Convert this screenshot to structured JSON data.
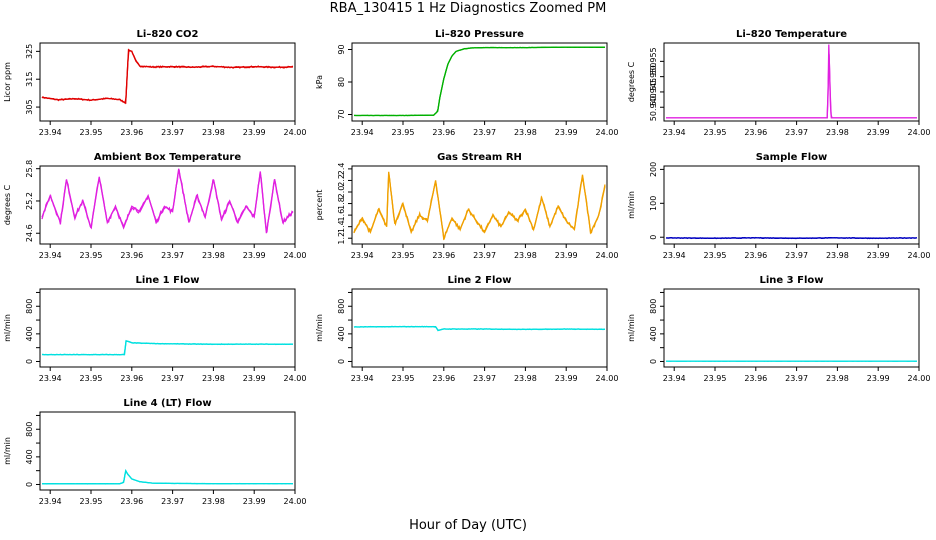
{
  "figure": {
    "title": "RBA_130415  1 Hz Diagnostics Zoomed PM",
    "xlabel": "Hour of Day (UTC)"
  },
  "chart_data": [
    {
      "type": "line",
      "title": "Li–820 CO2",
      "ylabel": "Licor ppm",
      "xlim": [
        23.9375,
        24.0
      ],
      "ylim": [
        300,
        328
      ],
      "xticks": [
        23.94,
        23.95,
        23.96,
        23.97,
        23.98,
        23.99,
        24.0
      ],
      "xtick_labels": [
        "23.94",
        "23.95",
        "23.96",
        "23.97",
        "23.98",
        "23.99",
        "24.00"
      ],
      "yticks": [
        305,
        315,
        325
      ],
      "ytick_labels": [
        "305",
        "315",
        "325"
      ],
      "color": "#e00000",
      "x": [
        23.938,
        23.942,
        23.946,
        23.95,
        23.954,
        23.957,
        23.9585,
        23.9592,
        23.96,
        23.961,
        23.962,
        23.963,
        23.965,
        23.97,
        23.975,
        23.98,
        23.985,
        23.99,
        23.995,
        23.9995
      ],
      "y": [
        308.5,
        307.6,
        308.0,
        307.5,
        308.1,
        307.7,
        306.5,
        325.5,
        325.0,
        321.5,
        319.7,
        319.6,
        319.4,
        319.5,
        319.3,
        319.6,
        319.2,
        319.5,
        319.3,
        319.4
      ]
    },
    {
      "type": "line",
      "title": "Li–820 Pressure",
      "ylabel": "kPa",
      "xlim": [
        23.9375,
        24.0
      ],
      "ylim": [
        68,
        92
      ],
      "xticks": [
        23.94,
        23.95,
        23.96,
        23.97,
        23.98,
        23.99,
        24.0
      ],
      "xtick_labels": [
        "23.94",
        "23.95",
        "23.96",
        "23.97",
        "23.98",
        "23.99",
        "24.00"
      ],
      "yticks": [
        70,
        80,
        90
      ],
      "ytick_labels": [
        "70",
        "80",
        "90"
      ],
      "color": "#00b000",
      "x": [
        23.938,
        23.95,
        23.9575,
        23.9585,
        23.959,
        23.96,
        23.961,
        23.962,
        23.963,
        23.965,
        23.967,
        23.97,
        23.98,
        23.99,
        23.9995
      ],
      "y": [
        69.7,
        69.7,
        69.8,
        71.0,
        75.0,
        81.0,
        85.5,
        88.0,
        89.4,
        90.2,
        90.5,
        90.6,
        90.6,
        90.7,
        90.7
      ]
    },
    {
      "type": "line",
      "title": "Li–820 Temperature",
      "ylabel": "degrees C",
      "xlim": [
        23.9375,
        24.0
      ],
      "ylim": [
        50.9355,
        50.961
      ],
      "xticks": [
        23.94,
        23.95,
        23.96,
        23.97,
        23.98,
        23.99,
        24.0
      ],
      "xtick_labels": [
        "23.94",
        "23.95",
        "23.96",
        "23.97",
        "23.98",
        "23.99",
        "24.00"
      ],
      "yticks": [
        50.94,
        50.945,
        50.95,
        50.955
      ],
      "ytick_labels": [
        "50.940",
        "50.945",
        "50.950",
        "50.955"
      ],
      "color": "#e020e0",
      "x": [
        23.938,
        23.9775,
        23.9777,
        23.9779,
        23.9781,
        23.9783,
        23.9785,
        23.9995
      ],
      "y": [
        50.9365,
        50.9365,
        50.944,
        50.9605,
        50.952,
        50.9405,
        50.9365,
        50.9365
      ]
    },
    {
      "type": "line",
      "title": "Ambient Box Temperature",
      "ylabel": "degrees C",
      "xlim": [
        23.9375,
        24.0
      ],
      "ylim": [
        24.4,
        25.85
      ],
      "xticks": [
        23.94,
        23.95,
        23.96,
        23.97,
        23.98,
        23.99,
        24.0
      ],
      "xtick_labels": [
        "23.94",
        "23.95",
        "23.96",
        "23.97",
        "23.98",
        "23.99",
        "24.00"
      ],
      "yticks": [
        24.6,
        25.2,
        25.8
      ],
      "ytick_labels": [
        "24.6",
        "25.2",
        "25.8"
      ],
      "color": "#e020e0",
      "x": [
        23.938,
        23.94,
        23.9425,
        23.944,
        23.946,
        23.948,
        23.95,
        23.952,
        23.954,
        23.956,
        23.958,
        23.96,
        23.962,
        23.964,
        23.966,
        23.968,
        23.97,
        23.9715,
        23.974,
        23.976,
        23.978,
        23.98,
        23.982,
        23.984,
        23.986,
        23.988,
        23.99,
        23.9915,
        23.993,
        23.995,
        23.997,
        23.9995
      ],
      "y": [
        24.9,
        25.3,
        24.8,
        25.6,
        24.9,
        25.2,
        24.7,
        25.65,
        24.8,
        25.1,
        24.7,
        25.1,
        25.0,
        25.3,
        24.8,
        25.1,
        25.0,
        25.8,
        24.8,
        25.3,
        24.9,
        25.6,
        24.85,
        25.2,
        24.8,
        25.1,
        24.9,
        25.75,
        24.6,
        25.6,
        24.8,
        25.0
      ]
    },
    {
      "type": "line",
      "title": "Gas Stream RH",
      "ylabel": "percent",
      "xlim": [
        23.9375,
        24.0
      ],
      "ylim": [
        1.1,
        2.45
      ],
      "xticks": [
        23.94,
        23.95,
        23.96,
        23.97,
        23.98,
        23.99,
        24.0
      ],
      "xtick_labels": [
        "23.94",
        "23.95",
        "23.96",
        "23.97",
        "23.98",
        "23.99",
        "24.00"
      ],
      "yticks": [
        1.2,
        1.4,
        1.6,
        1.8,
        2.0,
        2.2,
        2.4
      ],
      "ytick_labels": [
        "1.2",
        "1.4",
        "1.6",
        "1.8",
        "2.0",
        "2.2",
        "2.4"
      ],
      "color": "#f0a000",
      "x": [
        23.938,
        23.94,
        23.942,
        23.944,
        23.946,
        23.9465,
        23.948,
        23.95,
        23.952,
        23.954,
        23.956,
        23.958,
        23.96,
        23.962,
        23.964,
        23.966,
        23.968,
        23.97,
        23.972,
        23.974,
        23.976,
        23.978,
        23.98,
        23.982,
        23.984,
        23.986,
        23.988,
        23.99,
        23.992,
        23.994,
        23.996,
        23.998,
        23.9995
      ],
      "y": [
        1.3,
        1.55,
        1.3,
        1.7,
        1.4,
        2.35,
        1.45,
        1.8,
        1.3,
        1.6,
        1.5,
        2.2,
        1.2,
        1.55,
        1.35,
        1.7,
        1.5,
        1.3,
        1.6,
        1.4,
        1.65,
        1.5,
        1.7,
        1.35,
        1.9,
        1.4,
        1.75,
        1.5,
        1.35,
        2.3,
        1.3,
        1.6,
        2.1
      ]
    },
    {
      "type": "line",
      "title": "Sample Flow",
      "ylabel": "ml/min",
      "xlim": [
        23.9375,
        24.0
      ],
      "ylim": [
        -20,
        210
      ],
      "xticks": [
        23.94,
        23.95,
        23.96,
        23.97,
        23.98,
        23.99,
        24.0
      ],
      "xtick_labels": [
        "23.94",
        "23.95",
        "23.96",
        "23.97",
        "23.98",
        "23.99",
        "24.00"
      ],
      "yticks": [
        0,
        100,
        200
      ],
      "ytick_labels": [
        "0",
        "100",
        "200"
      ],
      "color": "#0000c0",
      "x": [
        23.938,
        23.95,
        23.96,
        23.97,
        23.98,
        23.99,
        23.9995
      ],
      "y": [
        -2,
        -3,
        -2,
        -3,
        -2,
        -3,
        -2
      ]
    },
    {
      "type": "line",
      "title": "Line 1 Flow",
      "ylabel": "ml/min",
      "xlim": [
        23.9375,
        24.0
      ],
      "ylim": [
        -80,
        1050
      ],
      "xticks": [
        23.94,
        23.95,
        23.96,
        23.97,
        23.98,
        23.99,
        24.0
      ],
      "xtick_labels": [
        "23.94",
        "23.95",
        "23.96",
        "23.97",
        "23.98",
        "23.99",
        "24.00"
      ],
      "yticks": [
        0,
        200,
        400,
        600,
        800,
        1000
      ],
      "ytick_labels": [
        "0",
        "",
        "400",
        "",
        "800",
        ""
      ],
      "color": "#00e0e0",
      "x": [
        23.938,
        23.95,
        23.9582,
        23.9586,
        23.96,
        23.965,
        23.97,
        23.98,
        23.99,
        23.9995
      ],
      "y": [
        100,
        100,
        100,
        300,
        270,
        260,
        255,
        250,
        252,
        250
      ]
    },
    {
      "type": "line",
      "title": "Line 2 Flow",
      "ylabel": "ml/min",
      "xlim": [
        23.9375,
        24.0
      ],
      "ylim": [
        -80,
        1050
      ],
      "xticks": [
        23.94,
        23.95,
        23.96,
        23.97,
        23.98,
        23.99,
        24.0
      ],
      "xtick_labels": [
        "23.94",
        "23.95",
        "23.96",
        "23.97",
        "23.98",
        "23.99",
        "24.00"
      ],
      "yticks": [
        0,
        200,
        400,
        600,
        800,
        1000
      ],
      "ytick_labels": [
        "0",
        "",
        "400",
        "",
        "800",
        ""
      ],
      "color": "#00e0e0",
      "x": [
        23.938,
        23.95,
        23.958,
        23.9586,
        23.96,
        23.97,
        23.98,
        23.99,
        23.9995
      ],
      "y": [
        500,
        505,
        505,
        450,
        470,
        470,
        465,
        470,
        465
      ]
    },
    {
      "type": "line",
      "title": "Line 3 Flow",
      "ylabel": "ml/min",
      "xlim": [
        23.9375,
        24.0
      ],
      "ylim": [
        -80,
        1050
      ],
      "xticks": [
        23.94,
        23.95,
        23.96,
        23.97,
        23.98,
        23.99,
        24.0
      ],
      "xtick_labels": [
        "23.94",
        "23.95",
        "23.96",
        "23.97",
        "23.98",
        "23.99",
        "24.00"
      ],
      "yticks": [
        0,
        200,
        400,
        600,
        800,
        1000
      ],
      "ytick_labels": [
        "0",
        "",
        "400",
        "",
        "800",
        ""
      ],
      "color": "#00e0e0",
      "x": [
        23.938,
        23.9995
      ],
      "y": [
        5,
        5
      ]
    },
    {
      "type": "line",
      "title": "Line 4 (LT) Flow",
      "ylabel": "ml/min",
      "xlim": [
        23.9375,
        24.0
      ],
      "ylim": [
        -80,
        1050
      ],
      "xticks": [
        23.94,
        23.95,
        23.96,
        23.97,
        23.98,
        23.99,
        24.0
      ],
      "xtick_labels": [
        "23.94",
        "23.95",
        "23.96",
        "23.97",
        "23.98",
        "23.99",
        "24.00"
      ],
      "yticks": [
        0,
        200,
        400,
        600,
        800,
        1000
      ],
      "ytick_labels": [
        "0",
        "",
        "400",
        "",
        "800",
        ""
      ],
      "color": "#00e0e0",
      "x": [
        23.938,
        23.957,
        23.958,
        23.9585,
        23.959,
        23.96,
        23.962,
        23.965,
        23.97,
        23.98,
        23.99,
        23.9995
      ],
      "y": [
        10,
        10,
        30,
        200,
        150,
        80,
        40,
        20,
        15,
        12,
        12,
        12
      ]
    }
  ]
}
